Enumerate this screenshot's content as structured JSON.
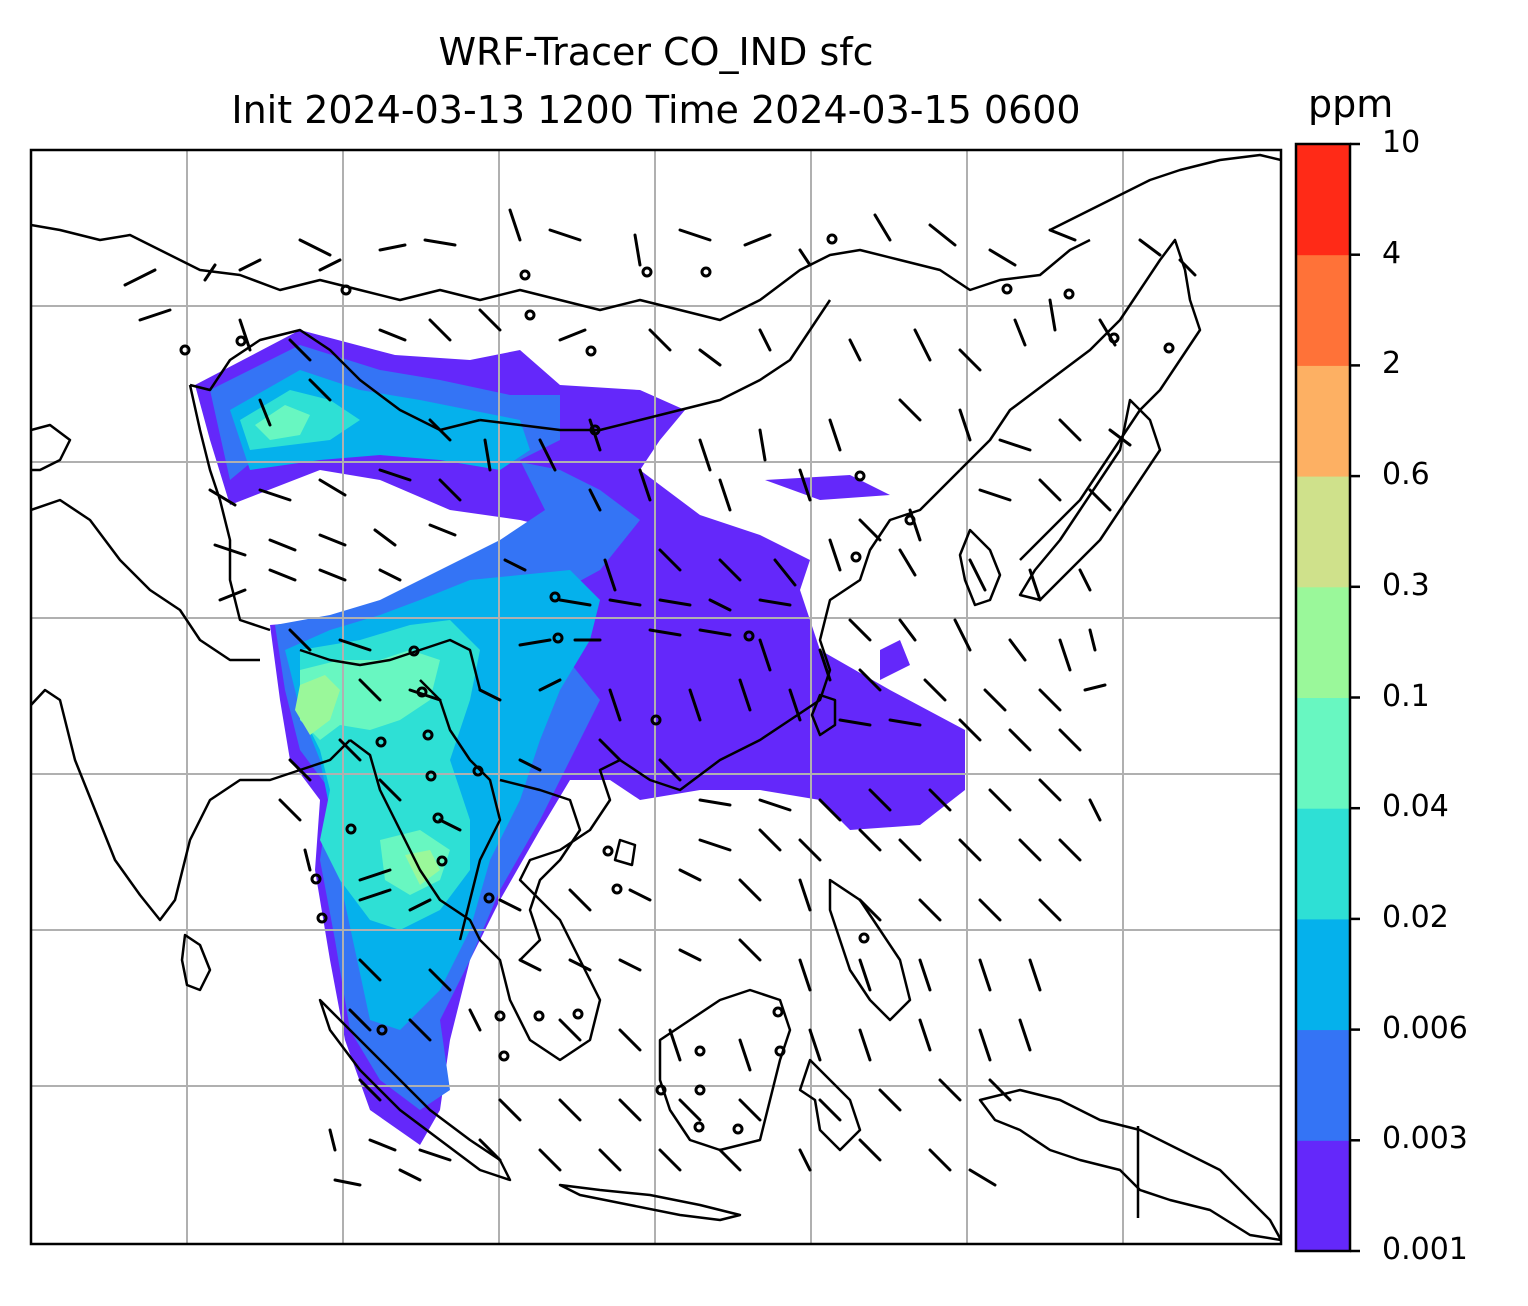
{
  "title": {
    "line1": "WRF-Tracer CO_IND sfc",
    "line2": "Init 2024-03-13 1200 Time 2024-03-15 0600"
  },
  "colorbar": {
    "unit": "ppm",
    "levels": [
      "0.001",
      "0.003",
      "0.006",
      "0.02",
      "0.04",
      "0.1",
      "0.3",
      "0.6",
      "2",
      "4",
      "10"
    ],
    "colors": [
      "#6428fa",
      "#3474f5",
      "#05b1ec",
      "#2ee0d5",
      "#68f7c1",
      "#9af89a",
      "#cfe18b",
      "#fdb063",
      "#ff7238",
      "#ff2a17"
    ]
  },
  "map": {
    "gridlines": true,
    "overlay": "wind-barbs",
    "calm-marker": "circle",
    "background": "#ffffff",
    "coastline_color": "#000000"
  }
}
